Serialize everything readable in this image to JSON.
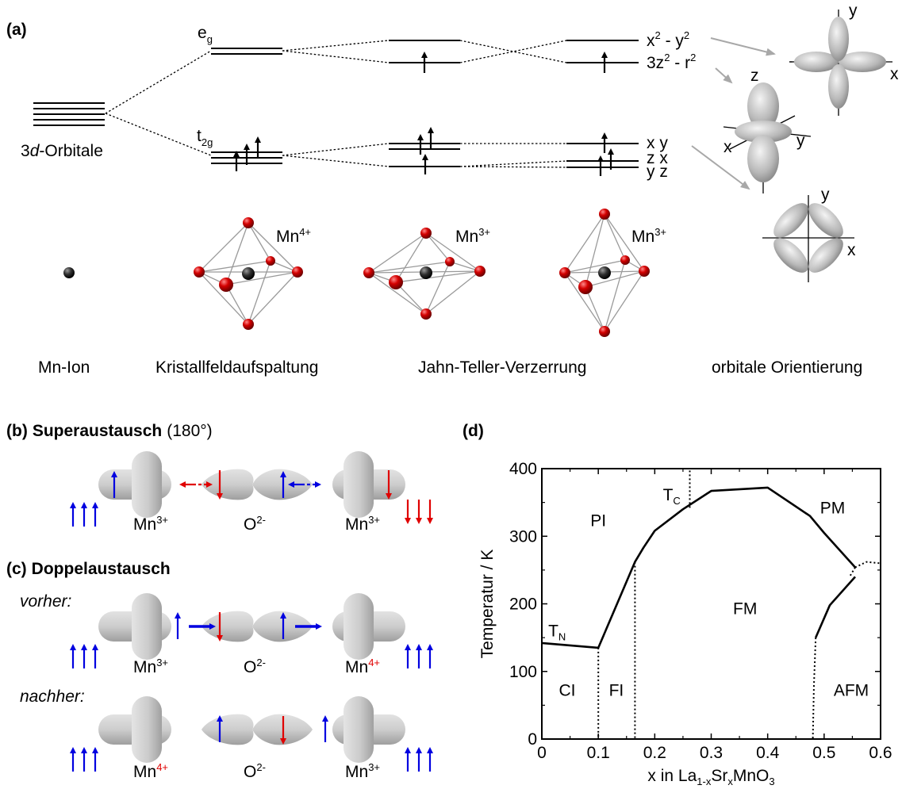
{
  "panel_a": {
    "label": "(a)",
    "orbitals_label": {
      "prefix": "3",
      "italic": "d",
      "suffix": "-Orbitale"
    },
    "eg": {
      "main": "e",
      "sub": "g"
    },
    "t2g": {
      "main": "t",
      "sub": "2g"
    },
    "orbital_names": {
      "x2y2": {
        "a": "x",
        "sup1": "2",
        "b": " - y",
        "sup2": "2"
      },
      "z2": {
        "a": "3z",
        "sup1": "2",
        "b": " - r",
        "sup2": "2"
      },
      "xy": "x y",
      "zx": "z x",
      "yz": "y z"
    },
    "ions": {
      "mn4": {
        "main": "Mn",
        "sup": "4+"
      },
      "mn3": {
        "main": "Mn",
        "sup": "3+"
      }
    },
    "captions": [
      "Mn-Ion",
      "Kristallfeldaufspaltung",
      "Jahn-Teller-Verzerrung",
      "orbitale Orientierung"
    ],
    "axes": {
      "x": "x",
      "y": "y",
      "z": "z"
    }
  },
  "panel_b": {
    "label": "(b)",
    "title": "Superaustausch",
    "angle": "(180°)"
  },
  "panel_c": {
    "label": "(c)",
    "title": "Doppelaustausch",
    "before": "vorher:",
    "after": "nachher:"
  },
  "sites": {
    "mn": "Mn",
    "o": "O",
    "sup3": "3+",
    "sup4": "4+",
    "sup_o": "2-"
  },
  "colors": {
    "spin_up": "#0000e0",
    "spin_down": "#e00000",
    "orbital": "#c8c8c8",
    "oxygen_atom": "#cc0000",
    "mn_atom": "#333333"
  },
  "panel_d": {
    "label": "(d)"
  },
  "chart_data": {
    "type": "line",
    "xlabel": {
      "pre": "x in La",
      "sub1": "1-x",
      "mid": "Sr",
      "sub2": "x",
      "post": "MnO",
      "sub3": "3"
    },
    "ylabel": "Temperatur / K",
    "xlim": [
      0,
      0.6
    ],
    "ylim": [
      0,
      400
    ],
    "x_ticks": [
      "0",
      "0.1",
      "0.2",
      "0.3",
      "0.4",
      "0.5",
      "0.6"
    ],
    "y_ticks": [
      "0",
      "100",
      "200",
      "300",
      "400"
    ],
    "series": [
      {
        "style": "solid",
        "points": [
          [
            0,
            142
          ],
          [
            0.1,
            135
          ],
          [
            0.165,
            262
          ],
          [
            0.18,
            283
          ],
          [
            0.2,
            308
          ],
          [
            0.25,
            340
          ],
          [
            0.3,
            367
          ],
          [
            0.4,
            372
          ],
          [
            0.475,
            330
          ],
          [
            0.5,
            305
          ],
          [
            0.555,
            254
          ]
        ]
      },
      {
        "style": "solid",
        "points": [
          [
            0.485,
            150
          ],
          [
            0.51,
            198
          ],
          [
            0.555,
            240
          ]
        ]
      },
      {
        "style": "dotted",
        "points": [
          [
            0.1,
            135
          ],
          [
            0.1,
            0
          ]
        ]
      },
      {
        "style": "dotted",
        "points": [
          [
            0.165,
            262
          ],
          [
            0.165,
            0
          ]
        ]
      },
      {
        "style": "dotted",
        "points": [
          [
            0.262,
            342
          ],
          [
            0.262,
            400
          ]
        ]
      },
      {
        "style": "dotted",
        "points": [
          [
            0.485,
            150
          ],
          [
            0.482,
            80
          ],
          [
            0.48,
            0
          ]
        ]
      },
      {
        "style": "dotted",
        "points": [
          [
            0.555,
            254
          ],
          [
            0.575,
            262
          ],
          [
            0.6,
            260
          ]
        ]
      },
      {
        "style": "dotted",
        "points": [
          [
            0.555,
            254
          ],
          [
            0.545,
            240
          ]
        ]
      }
    ],
    "regions": [
      {
        "text": "PI",
        "x": 0.1,
        "y": 315
      },
      {
        "text": "T",
        "sub": "C",
        "x": 0.23,
        "y": 353
      },
      {
        "text": "PM",
        "x": 0.515,
        "y": 334
      },
      {
        "text": "FM",
        "x": 0.36,
        "y": 185
      },
      {
        "text": "T",
        "sub": "N",
        "x": 0.027,
        "y": 152
      },
      {
        "text": "CI",
        "x": 0.045,
        "y": 64
      },
      {
        "text": "FI",
        "x": 0.132,
        "y": 64
      },
      {
        "text": "AFM",
        "x": 0.548,
        "y": 64
      }
    ]
  }
}
